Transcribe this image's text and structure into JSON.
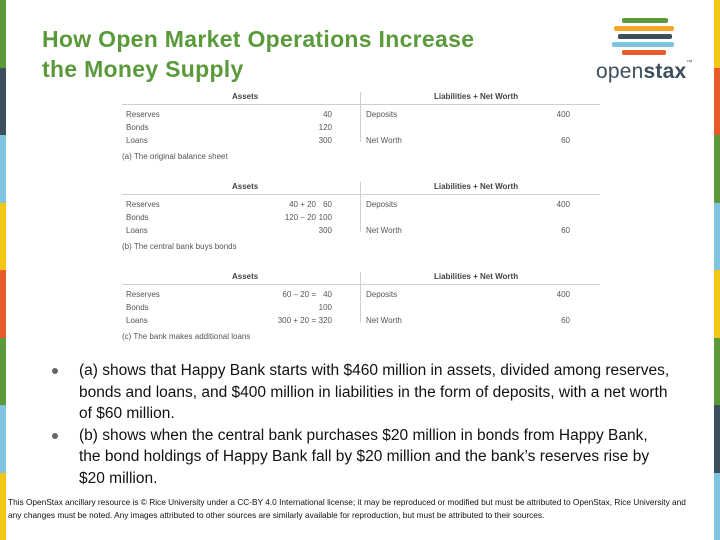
{
  "slide": {
    "title_line1": "How Open Market Operations Increase",
    "title_line2": "the Money Supply"
  },
  "logo": {
    "text_open": "open",
    "text_stax": "stax",
    "trademark": "™",
    "bar_colors": [
      "#5a9a3b",
      "#f5a623",
      "#3d4f5c",
      "#7ec3e0",
      "#e85a2c"
    ]
  },
  "frame_colors": [
    "#5a9a3b",
    "#3d4f5c",
    "#7ec3e0",
    "#f5c518",
    "#e85a2c",
    "#5a9a3b",
    "#7ec3e0",
    "#f5c518"
  ],
  "balance_sheets": [
    {
      "assets_header": "Assets",
      "liabilities_header": "Liabilities + Net Worth",
      "rows": [
        {
          "asset": "Reserves",
          "asset_calc": "",
          "asset_value": "40",
          "liability": "Deposits",
          "liability_value": "400"
        },
        {
          "asset": "Bonds",
          "asset_calc": "",
          "asset_value": "120",
          "liability": "",
          "liability_value": ""
        },
        {
          "asset": "Loans",
          "asset_calc": "",
          "asset_value": "300",
          "liability": "Net Worth",
          "liability_value": "60"
        }
      ],
      "caption": "(a) The original balance sheet"
    },
    {
      "assets_header": "Assets",
      "liabilities_header": "Liabilities + Net Worth",
      "rows": [
        {
          "asset": "Reserves",
          "asset_calc": "40 + 20",
          "asset_value": "60",
          "liability": "Deposits",
          "liability_value": "400"
        },
        {
          "asset": "Bonds",
          "asset_calc": "120 – 20",
          "asset_value": "100",
          "liability": "",
          "liability_value": ""
        },
        {
          "asset": "Loans",
          "asset_calc": "",
          "asset_value": "300",
          "liability": "Net Worth",
          "liability_value": "60"
        }
      ],
      "caption": "(b) The central bank buys bonds"
    },
    {
      "assets_header": "Assets",
      "liabilities_header": "Liabilities + Net Worth",
      "rows": [
        {
          "asset": "Reserves",
          "asset_calc": "60 – 20 =",
          "asset_value": "40",
          "liability": "Deposits",
          "liability_value": "400"
        },
        {
          "asset": "Bonds",
          "asset_calc": "",
          "asset_value": "100",
          "liability": "",
          "liability_value": ""
        },
        {
          "asset": "Loans",
          "asset_calc": "300 + 20 =",
          "asset_value": "320",
          "liability": "Net Worth",
          "liability_value": "60"
        }
      ],
      "caption": "(c) The bank makes additional loans"
    }
  ],
  "bullets": [
    "(a) shows that Happy Bank starts with $460 million in assets, divided among reserves, bonds and loans, and $400 million in liabilities in the form of deposits, with a net worth of $60 million.",
    "(b) shows when the central bank purchases $20 million in bonds from Happy Bank, the bond holdings of Happy Bank fall by $20 million and the bank’s reserves rise by $20 million."
  ],
  "footer": "This OpenStax ancillary resource is © Rice University under a CC-BY 4.0 International license; it may be reproduced or modified but must be attributed to OpenStax, Rice University and any changes must be noted. Any images attributed to other sources are similarly available for reproduction, but must be attributed to their sources."
}
